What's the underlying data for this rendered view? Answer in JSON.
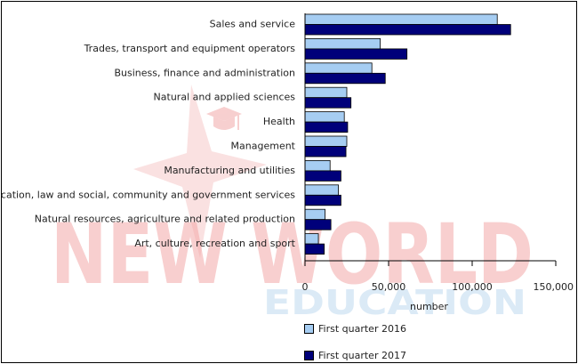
{
  "colors": {
    "series_2016": "#a6cdf2",
    "series_2017": "#00007a",
    "watermark_red": "#f2a8a8",
    "watermark_blue": "#cfe3f3"
  },
  "watermark": {
    "line1": "NEW WORLD",
    "line2": "EDUCATION"
  },
  "chart_data": {
    "type": "bar",
    "orientation": "horizontal",
    "categories": [
      "Sales and service",
      "Trades, transport and equipment operators",
      "Business, finance and administration",
      "Natural and applied sciences",
      "Health",
      "Management",
      "Manufacturing and utilities",
      "Education, law and social, community and government services",
      "Natural resources, agriculture and related production",
      "Art, culture, recreation and sport"
    ],
    "series": [
      {
        "name": "First quarter 2016",
        "values": [
          115000,
          45000,
          40000,
          25000,
          23500,
          25000,
          15000,
          20000,
          12000,
          8000
        ]
      },
      {
        "name": "First quarter 2017",
        "values": [
          123000,
          61000,
          48000,
          27500,
          25500,
          24500,
          21500,
          21500,
          15500,
          11500
        ]
      }
    ],
    "xlabel": "number",
    "xlim": [
      0,
      150000
    ],
    "xticks": [
      0,
      50000,
      100000,
      150000
    ],
    "xtick_labels": [
      "0",
      "50,000",
      "100,000",
      "150,000"
    ],
    "grid": false,
    "legend_position": "bottom"
  }
}
